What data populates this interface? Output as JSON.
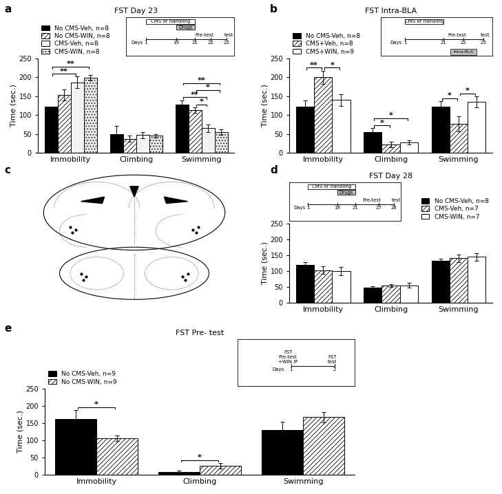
{
  "chart_data": [
    {
      "panel": "a",
      "type": "bar",
      "title": "FST Day 23",
      "y_label": "Time (sec.)",
      "categories": [
        "Immobility",
        "Climbing",
        "Swimming"
      ],
      "ylim": [
        0,
        250
      ],
      "yticks": [
        0,
        50,
        100,
        150,
        200,
        250
      ],
      "legend": "upper left",
      "series": [
        {
          "name": "No CMS-Veh, n=8",
          "color": "#000000",
          "values": [
            122,
            50,
            128
          ],
          "errors": [
            0,
            22,
            10
          ]
        },
        {
          "name": "No CMS-WIN, n=8",
          "color": "#ffffff",
          "values": [
            153,
            37,
            113
          ],
          "errors": [
            15,
            8,
            8
          ]
        },
        {
          "name": "CMS-Veh, n=8",
          "color": "#f2f2f2",
          "values": [
            187,
            47,
            65
          ],
          "errors": [
            15,
            8,
            10
          ]
        },
        {
          "name": "CMS-WIN, n=8",
          "color": "#e6e6e6",
          "values": [
            199,
            45,
            55
          ],
          "errors": [
            8,
            5,
            7
          ]
        }
      ],
      "significance": [
        {
          "category": "Immobility",
          "between": [
            "No CMS-Veh, n=8",
            "CMS-Veh, n=8"
          ],
          "label": "**"
        },
        {
          "category": "Immobility",
          "between": [
            "No CMS-Veh, n=8",
            "CMS-WIN, n=8"
          ],
          "label": "**"
        },
        {
          "category": "Swimming",
          "between": [
            "No CMS-Veh, n=8",
            "CMS-WIN, n=8"
          ],
          "label": "**"
        },
        {
          "category": "Swimming",
          "between": [
            "No CMS-Veh, n=8",
            "CMS-Veh, n=8"
          ],
          "label": "**"
        },
        {
          "category": "Swimming",
          "between": [
            "No CMS-WIN, n=8",
            "CMS-Veh, n=8"
          ],
          "label": "*"
        },
        {
          "category": "Swimming",
          "between": [
            "No CMS-WIN, n=8",
            "CMS-WIN, n=8"
          ],
          "label": "*"
        }
      ],
      "inset": {
        "axis_label": "Days",
        "ticks": [
          1,
          19,
          21,
          22,
          23
        ],
        "periods": [
          {
            "label": "CMS or handling",
            "start": 1,
            "end": 21
          },
          {
            "label": "Drugs",
            "start": 19,
            "end": 21
          }
        ],
        "events": [
          {
            "label": "Pre-test",
            "day": 22
          },
          {
            "label": "test",
            "day": 23
          }
        ]
      }
    },
    {
      "panel": "b",
      "type": "bar",
      "title": "FST Intra-BLA",
      "y_label": "Time (sec.)",
      "categories": [
        "Immobility",
        "Climbing",
        "Swimming"
      ],
      "ylim": [
        0,
        250
      ],
      "yticks": [
        0,
        50,
        100,
        150,
        200,
        250
      ],
      "legend": "upper left",
      "series": [
        {
          "name": "No CMS-Veh, n=8",
          "color": "#000000",
          "values": [
            123,
            55,
            122
          ],
          "errors": [
            15,
            10,
            15
          ]
        },
        {
          "name": "CMS+Veh, n=8",
          "color": "#ffffff",
          "values": [
            200,
            22,
            77
          ],
          "errors": [
            18,
            7,
            20
          ]
        },
        {
          "name": "CMS+WIN, n=9",
          "color": "#ffffff",
          "values": [
            140,
            27,
            135
          ],
          "errors": [
            15,
            5,
            15
          ]
        }
      ],
      "significance": [
        {
          "category": "Immobility",
          "between": [
            "No CMS-Veh, n=8",
            "CMS+Veh, n=8"
          ],
          "label": "**"
        },
        {
          "category": "Immobility",
          "between": [
            "CMS+Veh, n=8",
            "CMS+WIN, n=9"
          ],
          "label": "*"
        },
        {
          "category": "Climbing",
          "between": [
            "No CMS-Veh, n=8",
            "CMS+Veh, n=8"
          ],
          "label": "*"
        },
        {
          "category": "Climbing",
          "between": [
            "No CMS-Veh, n=8",
            "CMS+WIN, n=9"
          ],
          "label": "*"
        },
        {
          "category": "Swimming",
          "between": [
            "No CMS-Veh, n=8",
            "CMS+Veh, n=8"
          ],
          "label": "*"
        },
        {
          "category": "Swimming",
          "between": [
            "CMS+Veh, n=8",
            "CMS+WIN, n=9"
          ],
          "label": "*"
        }
      ],
      "inset": {
        "axis_label": "Days",
        "ticks": [
          1,
          21,
          22,
          23
        ],
        "periods": [
          {
            "label": "CMS or handling",
            "start": 1,
            "end": 21
          }
        ],
        "events": [
          {
            "label": "Pre-test",
            "day": 22
          },
          {
            "label": "test",
            "day": 23
          }
        ],
        "boxes": [
          {
            "label": "Intra-BLA",
            "day": 22
          }
        ]
      }
    },
    {
      "panel": "c",
      "type": "diagram"
    },
    {
      "panel": "d",
      "type": "bar",
      "title": "FST Day 28",
      "y_label": "Time (sec.)",
      "categories": [
        "Immobility",
        "Climbing",
        "Swimming"
      ],
      "ylim": [
        0,
        250
      ],
      "yticks": [
        0,
        50,
        100,
        150,
        200,
        250
      ],
      "legend": "upper right",
      "series": [
        {
          "name": "No CMS-Veh, n=8",
          "color": "#000000",
          "values": [
            120,
            48,
            132
          ],
          "errors": [
            8,
            5,
            8
          ]
        },
        {
          "name": "CMS-Veh, n=7",
          "color": "#ffffff",
          "values": [
            103,
            54,
            141
          ],
          "errors": [
            12,
            5,
            12
          ]
        },
        {
          "name": "CMS-WIN, n=7",
          "color": "#ffffff",
          "values": [
            100,
            55,
            145
          ],
          "errors": [
            12,
            8,
            12
          ]
        }
      ],
      "significance": [],
      "inset": {
        "axis_label": "Days",
        "ticks": [
          1,
          19,
          21,
          27,
          28
        ],
        "periods": [
          {
            "label": "CMS or handling",
            "start": 1,
            "end": 21
          },
          {
            "label": "Drugs",
            "start": 19,
            "end": 21
          }
        ],
        "events": [
          {
            "label": "Pre-test",
            "day": 27
          },
          {
            "label": "test",
            "day": 28
          }
        ]
      }
    },
    {
      "panel": "e",
      "type": "bar",
      "title": "FST Pre- test",
      "y_label": "Time (sec.)",
      "categories": [
        "Immobility",
        "Climbing",
        "Swimming"
      ],
      "ylim": [
        0,
        250
      ],
      "yticks": [
        0,
        50,
        100,
        150,
        200,
        250
      ],
      "legend": "upper left",
      "series": [
        {
          "name": "No CMS-Veh, n=9",
          "color": "#000000",
          "values": [
            162,
            9,
            130
          ],
          "errors": [
            27,
            3,
            25
          ]
        },
        {
          "name": "No CMS-WIN, n=9",
          "color": "#ffffff",
          "values": [
            107,
            27,
            168
          ],
          "errors": [
            8,
            8,
            15
          ]
        }
      ],
      "significance": [
        {
          "category": "Immobility",
          "between": [
            "No CMS-Veh, n=9",
            "No CMS-WIN, n=9"
          ],
          "label": "*"
        },
        {
          "category": "Climbing",
          "between": [
            "No CMS-Veh, n=9",
            "No CMS-WIN, n=9"
          ],
          "label": "*"
        }
      ],
      "inset": {
        "axis_label": "Days",
        "ticks": [
          1,
          2
        ],
        "periods": [],
        "events": [
          {
            "label": "FST\nPre-test\n+WIN IP",
            "day": 1
          },
          {
            "label": "FST\ntest",
            "day": 2
          }
        ]
      }
    }
  ]
}
